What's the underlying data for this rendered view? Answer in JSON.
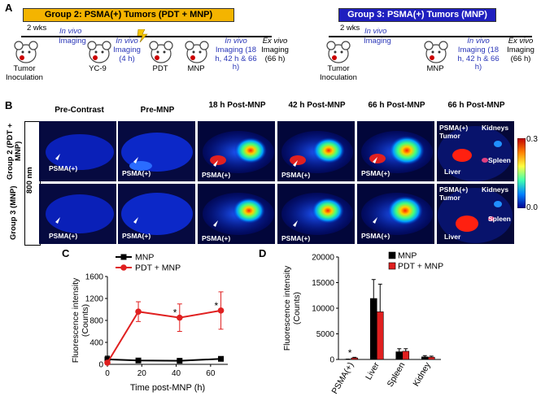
{
  "panel_a": {
    "letter": "A",
    "group2": {
      "title": "Group 2: PSMA(+) Tumors (PDT + MNP)",
      "fill": "#f4b400",
      "weeks": "2 wks",
      "steps": [
        {
          "label": "Tumor Inoculation"
        },
        {
          "label": "YC-9"
        },
        {
          "label_italic": "In vivo",
          "label": "Imaging (4 h)"
        },
        {
          "label": "PDT"
        },
        {
          "label": "MNP"
        },
        {
          "label_italic": "In vivo",
          "label": "Imaging (18 h, 42 h & 66 h)"
        },
        {
          "label_italic": "Ex vivo",
          "label": "Imaging (66 h)"
        }
      ],
      "in_vivo_1": "In vivo",
      "in_vivo_1_sub": "Imaging"
    },
    "group3": {
      "title": "Group 3: PSMA(+) Tumors (MNP)",
      "fill": "#1f1fbf",
      "weeks": "2 wks",
      "in_vivo_1": "In vivo",
      "in_vivo_1_sub": "Imaging",
      "steps": [
        {
          "label": "Tumor Inoculation"
        },
        {
          "label": "MNP"
        },
        {
          "label_italic": "In vivo",
          "label": "Imaging (18 h, 42 h & 66 h)"
        },
        {
          "label_italic": "Ex vivo",
          "label": "Imaging (66 h)"
        }
      ]
    }
  },
  "panel_b": {
    "letter": "B",
    "headers": [
      "Pre-Contrast",
      "Pre-MNP",
      "18 h Post-MNP",
      "42 h Post-MNP",
      "66 h Post-MNP",
      "66 h Post-MNP"
    ],
    "row_labels": [
      "Group 2 (PDT + MNP)",
      "Group 3 (MNP)"
    ],
    "wavelength": "800 nm",
    "tumor_label": "PSMA(+)",
    "exvivo_labels": {
      "tumor": "PSMA(+) Tumor",
      "kidneys": "Kidneys",
      "liver": "Liver",
      "spleen": "Spleen"
    },
    "colorbar": {
      "max": "0.3",
      "min": "0.0"
    }
  },
  "chart_data": [
    {
      "panel": "C",
      "type": "line",
      "xlabel": "Time post-MNP (h)",
      "ylabel": "Fluorescence intensity (Counts)",
      "xlim": [
        0,
        70
      ],
      "ylim": [
        0,
        1600
      ],
      "xticks": [
        0,
        20,
        40,
        60
      ],
      "yticks": [
        0,
        400,
        800,
        1200,
        1600
      ],
      "legend": "top-left",
      "series": [
        {
          "name": "MNP",
          "color": "#000000",
          "marker": "square",
          "x": [
            0,
            18,
            42,
            66
          ],
          "y": [
            90,
            70,
            65,
            100
          ],
          "err": [
            60,
            20,
            20,
            20
          ]
        },
        {
          "name": "PDT + MNP",
          "color": "#e02020",
          "marker": "circle",
          "x": [
            0,
            18,
            42,
            66
          ],
          "y": [
            30,
            960,
            850,
            980
          ],
          "err": [
            30,
            180,
            250,
            340
          ]
        }
      ],
      "annotations": [
        {
          "x": 42,
          "y": 850,
          "text": "*"
        },
        {
          "x": 66,
          "y": 980,
          "text": "*"
        }
      ]
    },
    {
      "panel": "D",
      "type": "bar",
      "ylabel": "Fluorescence intensity (Counts)",
      "categories": [
        "PSMA(+)",
        "Liver",
        "Spleen",
        "Kidney"
      ],
      "ylim": [
        0,
        20000
      ],
      "yticks": [
        0,
        5000,
        10000,
        15000,
        20000
      ],
      "legend": "top-right",
      "series": [
        {
          "name": "MNP",
          "color": "#000000",
          "values": [
            50,
            11900,
            1500,
            500
          ],
          "err": [
            30,
            3700,
            600,
            250
          ]
        },
        {
          "name": "PDT + MNP",
          "color": "#e02020",
          "values": [
            300,
            9300,
            1600,
            450
          ],
          "err": [
            120,
            5400,
            500,
            200
          ]
        }
      ],
      "annotations": [
        {
          "category": "PSMA(+)",
          "text": "*"
        }
      ]
    }
  ],
  "panel_c_letter": "C",
  "panel_d_letter": "D"
}
